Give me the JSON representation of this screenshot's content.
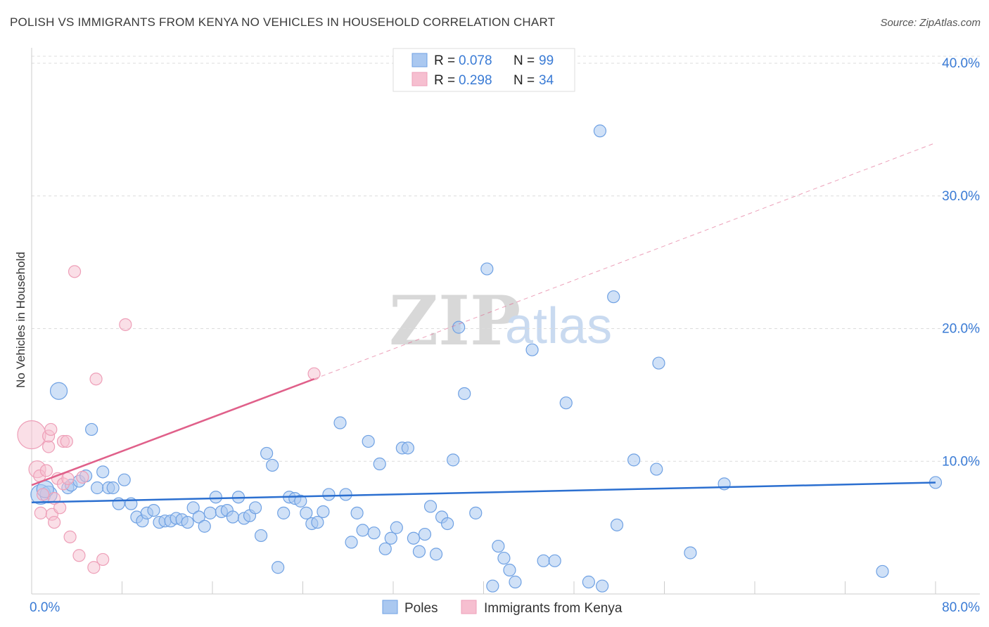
{
  "header": {
    "title": "POLISH VS IMMIGRANTS FROM KENYA NO VEHICLES IN HOUSEHOLD CORRELATION CHART",
    "source": "Source: ZipAtlas.com"
  },
  "watermark": {
    "zip": "ZIP",
    "atlas": "atlas"
  },
  "legend_top": [
    {
      "r_label": "R = ",
      "r_value": "0.078",
      "n_label": "N = ",
      "n_value": "99",
      "color": "#aac8f0"
    },
    {
      "r_label": "R = ",
      "r_value": "0.298",
      "n_label": "N = ",
      "n_value": "34",
      "color": "#f6bfd0"
    }
  ],
  "legend_bottom": [
    {
      "label": "Poles",
      "color": "#aac8f0"
    },
    {
      "label": "Immigrants from Kenya",
      "color": "#f6bfd0"
    }
  ],
  "chart_data": {
    "type": "scatter",
    "title": "POLISH VS IMMIGRANTS FROM KENYA NO VEHICLES IN HOUSEHOLD CORRELATION CHART",
    "xlabel": "",
    "ylabel": "No Vehicles in Household",
    "xlim": [
      0,
      80
    ],
    "ylim": [
      0,
      40
    ],
    "x_tick_labels": [
      "0.0%",
      "80.0%"
    ],
    "y_tick_labels": [
      {
        "value": 10,
        "label": "10.0%"
      },
      {
        "value": 20,
        "label": "20.0%"
      },
      {
        "value": 30,
        "label": "30.0%"
      },
      {
        "value": 40,
        "label": "40.0%"
      }
    ],
    "grid": true,
    "legend_position": "top-center",
    "series": [
      {
        "name": "Poles",
        "color": "#6fa1e3",
        "fill": "#aac8f0",
        "trend": {
          "x": [
            0,
            80
          ],
          "y": [
            6.9,
            8.4
          ],
          "color": "#2b6fd0"
        },
        "points": [
          {
            "x": 2.4,
            "y": 15.3,
            "s": 2
          },
          {
            "x": 0.8,
            "y": 7.5,
            "s": 3
          },
          {
            "x": 1.5,
            "y": 7.5,
            "s": 2
          },
          {
            "x": 1.2,
            "y": 7.9,
            "s": 2
          },
          {
            "x": 3.2,
            "y": 8.0,
            "s": 1
          },
          {
            "x": 3.5,
            "y": 8.2,
            "s": 1
          },
          {
            "x": 4.2,
            "y": 8.5,
            "s": 1
          },
          {
            "x": 4.8,
            "y": 8.9,
            "s": 1
          },
          {
            "x": 5.3,
            "y": 12.4,
            "s": 1
          },
          {
            "x": 5.8,
            "y": 8.0,
            "s": 1
          },
          {
            "x": 6.3,
            "y": 9.2,
            "s": 1
          },
          {
            "x": 6.8,
            "y": 8.0,
            "s": 1
          },
          {
            "x": 7.2,
            "y": 8.0,
            "s": 1
          },
          {
            "x": 7.7,
            "y": 6.8,
            "s": 1
          },
          {
            "x": 8.2,
            "y": 8.6,
            "s": 1
          },
          {
            "x": 8.8,
            "y": 6.8,
            "s": 1
          },
          {
            "x": 9.3,
            "y": 5.8,
            "s": 1
          },
          {
            "x": 9.8,
            "y": 5.5,
            "s": 1
          },
          {
            "x": 10.2,
            "y": 6.1,
            "s": 1
          },
          {
            "x": 10.8,
            "y": 6.3,
            "s": 1
          },
          {
            "x": 11.3,
            "y": 5.4,
            "s": 1
          },
          {
            "x": 11.8,
            "y": 5.5,
            "s": 1
          },
          {
            "x": 12.3,
            "y": 5.5,
            "s": 1
          },
          {
            "x": 12.8,
            "y": 5.7,
            "s": 1
          },
          {
            "x": 13.3,
            "y": 5.6,
            "s": 1
          },
          {
            "x": 13.8,
            "y": 5.4,
            "s": 1
          },
          {
            "x": 14.3,
            "y": 6.5,
            "s": 1
          },
          {
            "x": 14.8,
            "y": 5.8,
            "s": 1
          },
          {
            "x": 15.3,
            "y": 5.1,
            "s": 1
          },
          {
            "x": 15.8,
            "y": 6.1,
            "s": 1
          },
          {
            "x": 16.3,
            "y": 7.3,
            "s": 1
          },
          {
            "x": 16.8,
            "y": 6.2,
            "s": 1
          },
          {
            "x": 17.3,
            "y": 6.3,
            "s": 1
          },
          {
            "x": 17.8,
            "y": 5.8,
            "s": 1
          },
          {
            "x": 18.3,
            "y": 7.3,
            "s": 1
          },
          {
            "x": 18.8,
            "y": 5.7,
            "s": 1
          },
          {
            "x": 19.3,
            "y": 5.9,
            "s": 1
          },
          {
            "x": 19.8,
            "y": 6.5,
            "s": 1
          },
          {
            "x": 20.3,
            "y": 4.4,
            "s": 1
          },
          {
            "x": 20.8,
            "y": 10.6,
            "s": 1
          },
          {
            "x": 21.3,
            "y": 9.7,
            "s": 1
          },
          {
            "x": 21.8,
            "y": 2.0,
            "s": 1
          },
          {
            "x": 22.3,
            "y": 6.1,
            "s": 1
          },
          {
            "x": 22.8,
            "y": 7.3,
            "s": 1
          },
          {
            "x": 23.3,
            "y": 7.2,
            "s": 1
          },
          {
            "x": 23.8,
            "y": 7.0,
            "s": 1
          },
          {
            "x": 24.3,
            "y": 6.1,
            "s": 1
          },
          {
            "x": 24.8,
            "y": 5.3,
            "s": 1
          },
          {
            "x": 25.3,
            "y": 5.4,
            "s": 1
          },
          {
            "x": 25.8,
            "y": 6.2,
            "s": 1
          },
          {
            "x": 26.3,
            "y": 7.5,
            "s": 1
          },
          {
            "x": 27.3,
            "y": 12.9,
            "s": 1
          },
          {
            "x": 27.8,
            "y": 7.5,
            "s": 1
          },
          {
            "x": 28.3,
            "y": 3.9,
            "s": 1
          },
          {
            "x": 28.8,
            "y": 6.1,
            "s": 1
          },
          {
            "x": 29.3,
            "y": 4.8,
            "s": 1
          },
          {
            "x": 29.8,
            "y": 11.5,
            "s": 1
          },
          {
            "x": 30.3,
            "y": 4.6,
            "s": 1
          },
          {
            "x": 30.8,
            "y": 9.8,
            "s": 1
          },
          {
            "x": 31.3,
            "y": 3.4,
            "s": 1
          },
          {
            "x": 31.8,
            "y": 4.2,
            "s": 1
          },
          {
            "x": 32.3,
            "y": 5.0,
            "s": 1
          },
          {
            "x": 32.8,
            "y": 11.0,
            "s": 1
          },
          {
            "x": 33.3,
            "y": 11.0,
            "s": 1
          },
          {
            "x": 33.8,
            "y": 4.2,
            "s": 1
          },
          {
            "x": 34.3,
            "y": 3.2,
            "s": 1
          },
          {
            "x": 34.8,
            "y": 4.5,
            "s": 1
          },
          {
            "x": 35.3,
            "y": 6.6,
            "s": 1
          },
          {
            "x": 35.8,
            "y": 3.0,
            "s": 1
          },
          {
            "x": 36.3,
            "y": 5.8,
            "s": 1
          },
          {
            "x": 36.8,
            "y": 5.3,
            "s": 1
          },
          {
            "x": 37.3,
            "y": 10.1,
            "s": 1
          },
          {
            "x": 37.8,
            "y": 20.1,
            "s": 1
          },
          {
            "x": 38.3,
            "y": 15.1,
            "s": 1
          },
          {
            "x": 39.3,
            "y": 6.1,
            "s": 1
          },
          {
            "x": 40.3,
            "y": 24.5,
            "s": 1
          },
          {
            "x": 40.8,
            "y": 0.6,
            "s": 1
          },
          {
            "x": 41.3,
            "y": 3.6,
            "s": 1
          },
          {
            "x": 41.8,
            "y": 2.7,
            "s": 1
          },
          {
            "x": 42.3,
            "y": 1.8,
            "s": 1
          },
          {
            "x": 42.8,
            "y": 0.9,
            "s": 1
          },
          {
            "x": 44.3,
            "y": 18.4,
            "s": 1
          },
          {
            "x": 45.3,
            "y": 2.5,
            "s": 1
          },
          {
            "x": 46.3,
            "y": 2.5,
            "s": 1
          },
          {
            "x": 47.3,
            "y": 14.4,
            "s": 1
          },
          {
            "x": 49.3,
            "y": 0.9,
            "s": 1
          },
          {
            "x": 50.3,
            "y": 34.9,
            "s": 1
          },
          {
            "x": 50.5,
            "y": 0.6,
            "s": 1
          },
          {
            "x": 51.5,
            "y": 22.4,
            "s": 1
          },
          {
            "x": 51.8,
            "y": 5.2,
            "s": 1
          },
          {
            "x": 53.3,
            "y": 10.1,
            "s": 1
          },
          {
            "x": 55.3,
            "y": 9.4,
            "s": 1
          },
          {
            "x": 55.5,
            "y": 17.4,
            "s": 1
          },
          {
            "x": 58.3,
            "y": 3.1,
            "s": 1
          },
          {
            "x": 61.3,
            "y": 8.3,
            "s": 1
          },
          {
            "x": 75.3,
            "y": 1.7,
            "s": 1
          },
          {
            "x": 80.0,
            "y": 8.4,
            "s": 1
          }
        ]
      },
      {
        "name": "Immigrants from Kenya",
        "color": "#ee9fb8",
        "fill": "#f6bfd0",
        "trend": {
          "x": [
            0,
            25
          ],
          "y": [
            8.2,
            16.2
          ],
          "color": "#e0608a",
          "dashed_to": {
            "x": 80,
            "y": 34.0
          }
        },
        "points": [
          {
            "x": 0.0,
            "y": 12.0,
            "s": 4
          },
          {
            "x": 0.5,
            "y": 9.4,
            "s": 2
          },
          {
            "x": 0.7,
            "y": 8.9,
            "s": 1
          },
          {
            "x": 0.8,
            "y": 6.1,
            "s": 1
          },
          {
            "x": 1.0,
            "y": 7.5,
            "s": 1
          },
          {
            "x": 1.3,
            "y": 9.3,
            "s": 1
          },
          {
            "x": 1.5,
            "y": 11.1,
            "s": 1
          },
          {
            "x": 1.5,
            "y": 11.9,
            "s": 1
          },
          {
            "x": 1.7,
            "y": 12.4,
            "s": 1
          },
          {
            "x": 1.8,
            "y": 6.0,
            "s": 1
          },
          {
            "x": 2.0,
            "y": 7.2,
            "s": 1
          },
          {
            "x": 2.0,
            "y": 5.4,
            "s": 1
          },
          {
            "x": 2.3,
            "y": 8.7,
            "s": 1
          },
          {
            "x": 2.5,
            "y": 6.5,
            "s": 1
          },
          {
            "x": 2.8,
            "y": 8.3,
            "s": 1
          },
          {
            "x": 2.8,
            "y": 11.5,
            "s": 1
          },
          {
            "x": 3.1,
            "y": 11.5,
            "s": 1
          },
          {
            "x": 3.2,
            "y": 8.7,
            "s": 1
          },
          {
            "x": 3.4,
            "y": 4.3,
            "s": 1
          },
          {
            "x": 3.8,
            "y": 24.3,
            "s": 1
          },
          {
            "x": 4.2,
            "y": 2.9,
            "s": 1
          },
          {
            "x": 4.5,
            "y": 8.8,
            "s": 1
          },
          {
            "x": 5.5,
            "y": 2.0,
            "s": 1
          },
          {
            "x": 5.7,
            "y": 16.2,
            "s": 1
          },
          {
            "x": 6.3,
            "y": 2.6,
            "s": 1
          },
          {
            "x": 8.3,
            "y": 20.3,
            "s": 1
          },
          {
            "x": 25.0,
            "y": 16.6,
            "s": 1
          }
        ]
      }
    ]
  }
}
